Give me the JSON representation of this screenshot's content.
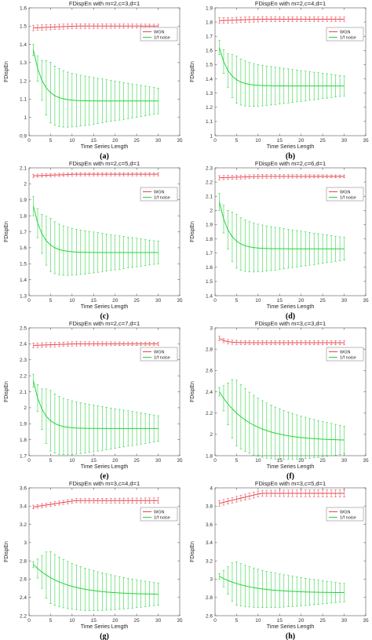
{
  "chart_data": [
    {
      "type": "line",
      "panel_label": "(a)",
      "title": "FDispEn with m=2,c=3,d=1",
      "xlabel": "Time Series Length",
      "ylabel": "FDispEn",
      "xlim": [
        0,
        35
      ],
      "ylim": [
        0.9,
        1.6
      ],
      "xticks": [
        0,
        5,
        10,
        15,
        20,
        25,
        30,
        35
      ],
      "yticks": [
        0.9,
        1,
        1.1,
        1.2,
        1.3,
        1.4,
        1.5,
        1.6
      ],
      "ytick_labels": [
        "0.9",
        "1",
        "1.1",
        "1.2",
        "1.3",
        "1.4",
        "1.5",
        "1.6"
      ],
      "legend_position": "right",
      "x": [
        1,
        2,
        3,
        4,
        5,
        6,
        7,
        8,
        9,
        10,
        11,
        12,
        13,
        14,
        15,
        16,
        17,
        18,
        19,
        20,
        21,
        22,
        23,
        24,
        25,
        26,
        27,
        28,
        29,
        30
      ],
      "series": [
        {
          "name": "WGN",
          "color": "#e8474f",
          "mean_start": 1.49,
          "mean_end": 1.5,
          "err_start": 0.015,
          "err_end": 0.01
        },
        {
          "name": "1/f noise",
          "color": "#25d33a",
          "mean_start": 1.37,
          "mean_end": 1.09,
          "err_start": 0.03,
          "err_end": 0.07
        }
      ]
    },
    {
      "type": "line",
      "panel_label": "(b)",
      "title": "FDispEn with m=2,c=4,d=1",
      "xlabel": "Time Series Length",
      "ylabel": "FDispEn",
      "xlim": [
        0,
        35
      ],
      "ylim": [
        1.0,
        1.9
      ],
      "xticks": [
        0,
        5,
        10,
        15,
        20,
        25,
        30,
        35
      ],
      "yticks": [
        1.0,
        1.1,
        1.2,
        1.3,
        1.4,
        1.5,
        1.6,
        1.7,
        1.8,
        1.9
      ],
      "ytick_labels": [
        "1",
        "1.1",
        "1.2",
        "1.3",
        "1.4",
        "1.5",
        "1.6",
        "1.7",
        "1.8",
        "1.9"
      ],
      "legend_position": "right",
      "x": [
        1,
        2,
        3,
        4,
        5,
        6,
        7,
        8,
        9,
        10,
        11,
        12,
        13,
        14,
        15,
        16,
        17,
        18,
        19,
        20,
        21,
        22,
        23,
        24,
        25,
        26,
        27,
        28,
        29,
        30
      ],
      "series": [
        {
          "name": "WGN",
          "color": "#e8474f",
          "mean_start": 1.81,
          "mean_end": 1.82,
          "err_start": 0.02,
          "err_end": 0.015
        },
        {
          "name": "1/f noise",
          "color": "#25d33a",
          "mean_start": 1.62,
          "mean_end": 1.35,
          "err_start": 0.05,
          "err_end": 0.07
        }
      ]
    },
    {
      "type": "line",
      "panel_label": "(c)",
      "title": "FDispEn with m=2,c=5,d=1",
      "xlabel": "Time Series Length",
      "ylabel": "FDispEn",
      "xlim": [
        0,
        35
      ],
      "ylim": [
        1.3,
        2.1
      ],
      "xticks": [
        0,
        5,
        10,
        15,
        20,
        25,
        30,
        35
      ],
      "yticks": [
        1.3,
        1.4,
        1.5,
        1.6,
        1.7,
        1.8,
        1.9,
        2.0,
        2.1
      ],
      "ytick_labels": [
        "1.3",
        "1.4",
        "1.5",
        "1.6",
        "1.7",
        "1.8",
        "1.9",
        "2",
        "2.1"
      ],
      "legend_position": "right",
      "x": [
        1,
        2,
        3,
        4,
        5,
        6,
        7,
        8,
        9,
        10,
        11,
        12,
        13,
        14,
        15,
        16,
        17,
        18,
        19,
        20,
        21,
        22,
        23,
        24,
        25,
        26,
        27,
        28,
        29,
        30
      ],
      "series": [
        {
          "name": "WGN",
          "color": "#e8474f",
          "mean_start": 2.05,
          "mean_end": 2.06,
          "err_start": 0.01,
          "err_end": 0.01
        },
        {
          "name": "1/f noise",
          "color": "#25d33a",
          "mean_start": 1.86,
          "mean_end": 1.57,
          "err_start": 0.06,
          "err_end": 0.07
        }
      ]
    },
    {
      "type": "line",
      "panel_label": "(d)",
      "title": "FDispEn with m=2,c=6,d=1",
      "xlabel": "Time Series Length",
      "ylabel": "FDispEn",
      "xlim": [
        0,
        35
      ],
      "ylim": [
        1.4,
        2.3
      ],
      "xticks": [
        0,
        5,
        10,
        15,
        20,
        25,
        30,
        35
      ],
      "yticks": [
        1.4,
        1.5,
        1.6,
        1.7,
        1.8,
        1.9,
        2.0,
        2.1,
        2.2,
        2.3
      ],
      "ytick_labels": [
        "1.4",
        "1.5",
        "1.6",
        "1.7",
        "1.8",
        "1.9",
        "2",
        "2.1",
        "2.2",
        "2.3"
      ],
      "legend_position": "right",
      "x": [
        1,
        2,
        3,
        4,
        5,
        6,
        7,
        8,
        9,
        10,
        11,
        12,
        13,
        14,
        15,
        16,
        17,
        18,
        19,
        20,
        21,
        22,
        23,
        24,
        25,
        26,
        27,
        28,
        29,
        30
      ],
      "series": [
        {
          "name": "WGN",
          "color": "#e8474f",
          "mean_start": 2.23,
          "mean_end": 2.24,
          "err_start": 0.015,
          "err_end": 0.01
        },
        {
          "name": "1/f noise",
          "color": "#25d33a",
          "mean_start": 2.06,
          "mean_end": 1.73,
          "err_start": 0.06,
          "err_end": 0.08
        }
      ]
    },
    {
      "type": "line",
      "panel_label": "(e)",
      "title": "FDispEn with m=2,c=7,d=1",
      "xlabel": "Time Series Length",
      "ylabel": "FDispEn",
      "xlim": [
        0,
        35
      ],
      "ylim": [
        1.7,
        2.5
      ],
      "xticks": [
        0,
        5,
        10,
        15,
        20,
        25,
        30,
        35
      ],
      "yticks": [
        1.7,
        1.8,
        1.9,
        2.0,
        2.1,
        2.2,
        2.3,
        2.4,
        2.5
      ],
      "ytick_labels": [
        "1.7",
        "1.8",
        "1.9",
        "2",
        "2.1",
        "2.2",
        "2.3",
        "2.4",
        "2.5"
      ],
      "legend_position": "right",
      "x": [
        1,
        2,
        3,
        4,
        5,
        6,
        7,
        8,
        9,
        10,
        11,
        12,
        13,
        14,
        15,
        16,
        17,
        18,
        19,
        20,
        21,
        22,
        23,
        24,
        25,
        26,
        27,
        28,
        29,
        30
      ],
      "series": [
        {
          "name": "WGN",
          "color": "#e8474f",
          "mean_start": 2.39,
          "mean_end": 2.4,
          "err_start": 0.015,
          "err_end": 0.01
        },
        {
          "name": "1/f noise",
          "color": "#25d33a",
          "mean_start": 2.17,
          "mean_end": 1.87,
          "err_start": 0.04,
          "err_end": 0.08
        }
      ]
    },
    {
      "type": "line",
      "panel_label": "(f)",
      "title": "FDispEn with m=3,c=3,d=1",
      "xlabel": "Time Series Length",
      "ylabel": "FDispEn",
      "xlim": [
        0,
        35
      ],
      "ylim": [
        1.8,
        3.0
      ],
      "xticks": [
        0,
        5,
        10,
        15,
        20,
        25,
        30,
        35
      ],
      "yticks": [
        1.8,
        2.0,
        2.2,
        2.4,
        2.6,
        2.8,
        3.0
      ],
      "ytick_labels": [
        "1.8",
        "2",
        "2.2",
        "2.4",
        "2.6",
        "2.8",
        "3"
      ],
      "legend_position": "right",
      "x": [
        1,
        2,
        3,
        4,
        5,
        6,
        7,
        8,
        9,
        10,
        11,
        12,
        13,
        14,
        15,
        16,
        17,
        18,
        19,
        20,
        21,
        22,
        23,
        24,
        25,
        26,
        27,
        28,
        29,
        30
      ],
      "series": [
        {
          "name": "WGN",
          "color": "#e8474f",
          "mean_start": 2.9,
          "mean_end": 2.86,
          "err_start": 0.02,
          "err_end": 0.02
        },
        {
          "name": "1/f noise",
          "color": "#25d33a",
          "mean_start": 2.4,
          "mean_end": 1.94,
          "err_start": 0.04,
          "err_end": 0.13
        }
      ]
    },
    {
      "type": "line",
      "panel_label": "(g)",
      "title": "FDispEn with m=3,c=4,d=1",
      "xlabel": "Time Series Length",
      "ylabel": "FDispEn",
      "xlim": [
        0,
        35
      ],
      "ylim": [
        2.2,
        3.6
      ],
      "xticks": [
        0,
        5,
        10,
        15,
        20,
        25,
        30,
        35
      ],
      "yticks": [
        2.2,
        2.4,
        2.6,
        2.8,
        3.0,
        3.2,
        3.4,
        3.6
      ],
      "ytick_labels": [
        "2.2",
        "2.4",
        "2.6",
        "2.8",
        "3",
        "3.2",
        "3.4",
        "3.6"
      ],
      "legend_position": "right",
      "x": [
        1,
        2,
        3,
        4,
        5,
        6,
        7,
        8,
        9,
        10,
        11,
        12,
        13,
        14,
        15,
        16,
        17,
        18,
        19,
        20,
        21,
        22,
        23,
        24,
        25,
        26,
        27,
        28,
        29,
        30
      ],
      "series": [
        {
          "name": "WGN",
          "color": "#e8474f",
          "mean_start": 3.39,
          "mean_end": 3.46,
          "err_start": 0.02,
          "err_end": 0.03
        },
        {
          "name": "1/f noise",
          "color": "#25d33a",
          "mean_start": 2.76,
          "mean_end": 2.43,
          "err_start": 0.03,
          "err_end": 0.12
        }
      ]
    },
    {
      "type": "line",
      "panel_label": "(h)",
      "title": "FDispEn with m=3,c=5,d=1",
      "xlabel": "Time Series Length",
      "ylabel": "FDispEn",
      "xlim": [
        0,
        35
      ],
      "ylim": [
        2.6,
        4.0
      ],
      "xticks": [
        0,
        5,
        10,
        15,
        20,
        25,
        30,
        35
      ],
      "yticks": [
        2.6,
        2.8,
        3.0,
        3.2,
        3.4,
        3.6,
        3.8,
        4.0
      ],
      "ytick_labels": [
        "2.6",
        "2.8",
        "3",
        "3.2",
        "3.4",
        "3.6",
        "3.8",
        "4"
      ],
      "legend_position": "right",
      "x": [
        1,
        2,
        3,
        4,
        5,
        6,
        7,
        8,
        9,
        10,
        11,
        12,
        13,
        14,
        15,
        16,
        17,
        18,
        19,
        20,
        21,
        22,
        23,
        24,
        25,
        26,
        27,
        28,
        29,
        30
      ],
      "series": [
        {
          "name": "WGN",
          "color": "#e8474f",
          "mean_start": 3.83,
          "mean_end": 3.94,
          "err_start": 0.03,
          "err_end": 0.04
        },
        {
          "name": "1/f noise",
          "color": "#25d33a",
          "mean_start": 3.03,
          "mean_end": 2.85,
          "err_start": 0.03,
          "err_end": 0.1
        }
      ]
    }
  ]
}
